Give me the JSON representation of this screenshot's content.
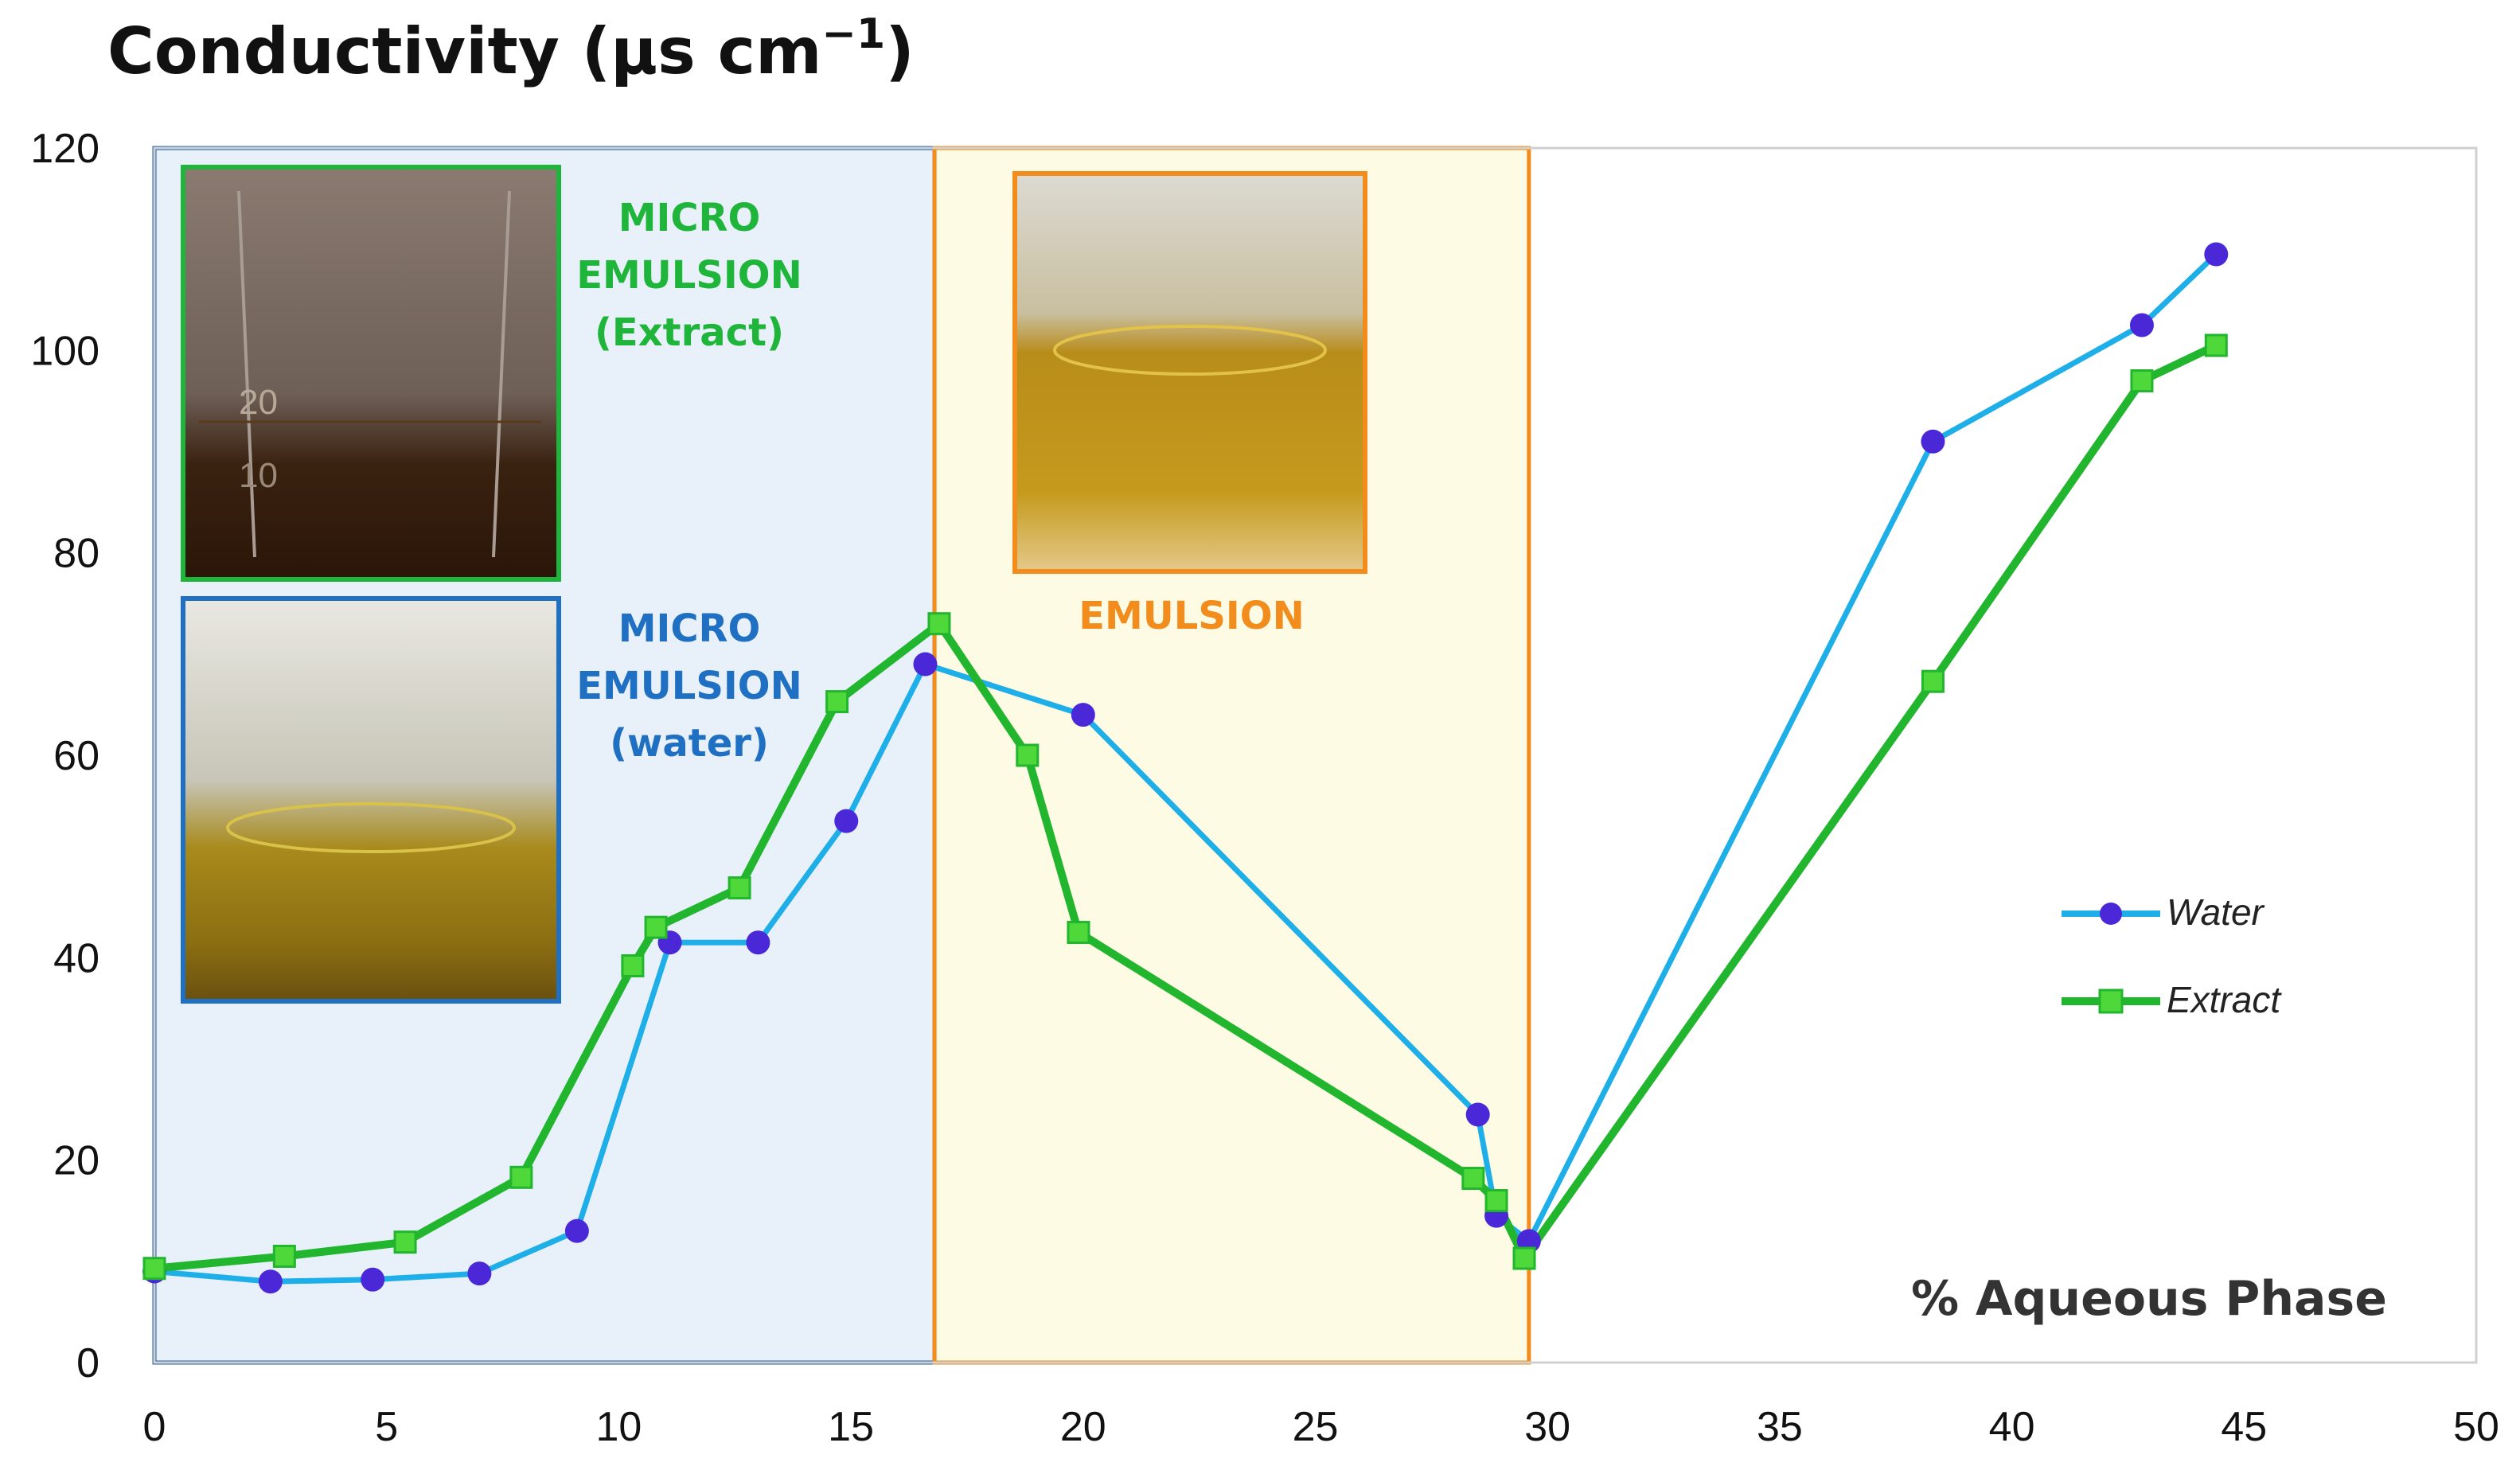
{
  "chart_data": {
    "type": "line",
    "title": "Conductivity (µs cm",
    "title_sup": "−1",
    "title_close": ")",
    "xlabel": "% Aqueous Phase",
    "ylabel": "",
    "xlim": [
      0,
      50
    ],
    "ylim": [
      0,
      120
    ],
    "x_ticks": [
      0,
      5,
      10,
      15,
      20,
      25,
      30,
      35,
      40,
      45,
      50
    ],
    "y_ticks": [
      0,
      20,
      40,
      60,
      80,
      100,
      120
    ],
    "regions": [
      {
        "name": "microemulsion",
        "x_range": [
          0,
          16.8
        ],
        "fill": "#e8f0fa",
        "stroke": "#1f5fa8"
      },
      {
        "name": "emulsion",
        "x_range": [
          16.8,
          29.6
        ],
        "fill": "#fdfbe3",
        "stroke": "#f28c1c"
      }
    ],
    "annotations": {
      "micro_extract": [
        "MICRO",
        "EMULSION",
        "(Extract)"
      ],
      "micro_water": [
        "MICRO",
        "EMULSION",
        "(water)"
      ],
      "emulsion": "EMULSION"
    },
    "photos": {
      "extract_beaker_marks": [
        "20",
        "10"
      ]
    },
    "series": [
      {
        "name": "Water",
        "color": "#1eaee8",
        "marker_color": "#4a28d8",
        "x": [
          0,
          2.5,
          4.7,
          7.0,
          9.1,
          11.1,
          13.0,
          14.9,
          16.6,
          20.0,
          28.5,
          28.9,
          29.6,
          38.3,
          42.8,
          44.4
        ],
        "y": [
          9.0,
          8.0,
          8.2,
          8.8,
          13.0,
          41.5,
          41.5,
          53.5,
          69.0,
          64.0,
          24.5,
          14.5,
          12.0,
          91.0,
          102.5,
          109.5
        ]
      },
      {
        "name": "Extract",
        "color": "#22b52e",
        "marker_color": "#4fd83a",
        "x": [
          0,
          2.8,
          5.4,
          7.9,
          10.3,
          10.8,
          12.6,
          14.7,
          16.9,
          18.8,
          19.9,
          28.4,
          28.9,
          29.5,
          38.3,
          42.8,
          44.4
        ],
        "y": [
          9.3,
          10.5,
          11.9,
          18.3,
          39.2,
          43.0,
          46.9,
          65.3,
          73.0,
          60.0,
          42.5,
          18.2,
          16.0,
          10.3,
          67.3,
          97.0,
          100.5
        ]
      }
    ]
  }
}
